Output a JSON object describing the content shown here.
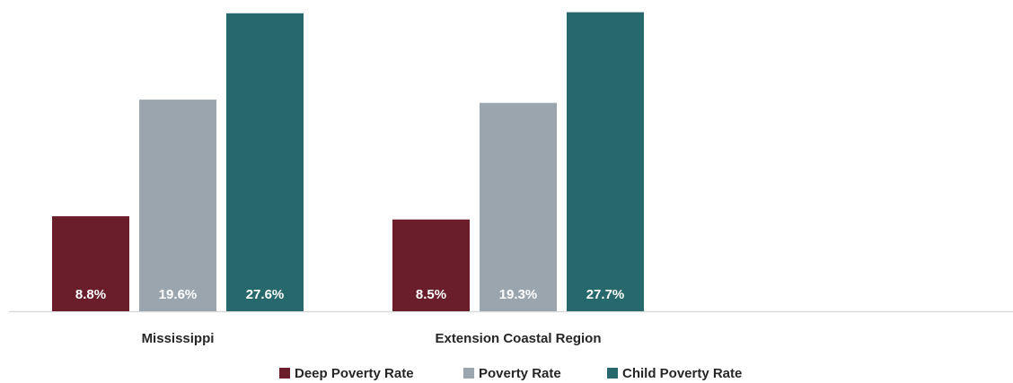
{
  "chart_data": {
    "type": "bar",
    "categories": [
      "Mississippi",
      "Extension Coastal Region"
    ],
    "series": [
      {
        "name": "Deep Poverty Rate",
        "values": [
          8.8,
          8.5
        ],
        "labels": [
          "8.8%",
          "8.5%"
        ],
        "color": "#6a1d2b"
      },
      {
        "name": "Poverty Rate",
        "values": [
          19.6,
          19.3
        ],
        "labels": [
          "19.6%",
          "19.3%"
        ],
        "color": "#9aa5ae"
      },
      {
        "name": "Child Poverty Rate",
        "values": [
          27.6,
          27.7
        ],
        "labels": [
          "27.6%",
          "27.7%"
        ],
        "color": "#27686d"
      }
    ],
    "title": "",
    "xlabel": "",
    "ylabel": "",
    "ylim": [
      0,
      28
    ],
    "grid": false,
    "legend_position": "bottom",
    "axis_color": "#d9d9d9"
  }
}
